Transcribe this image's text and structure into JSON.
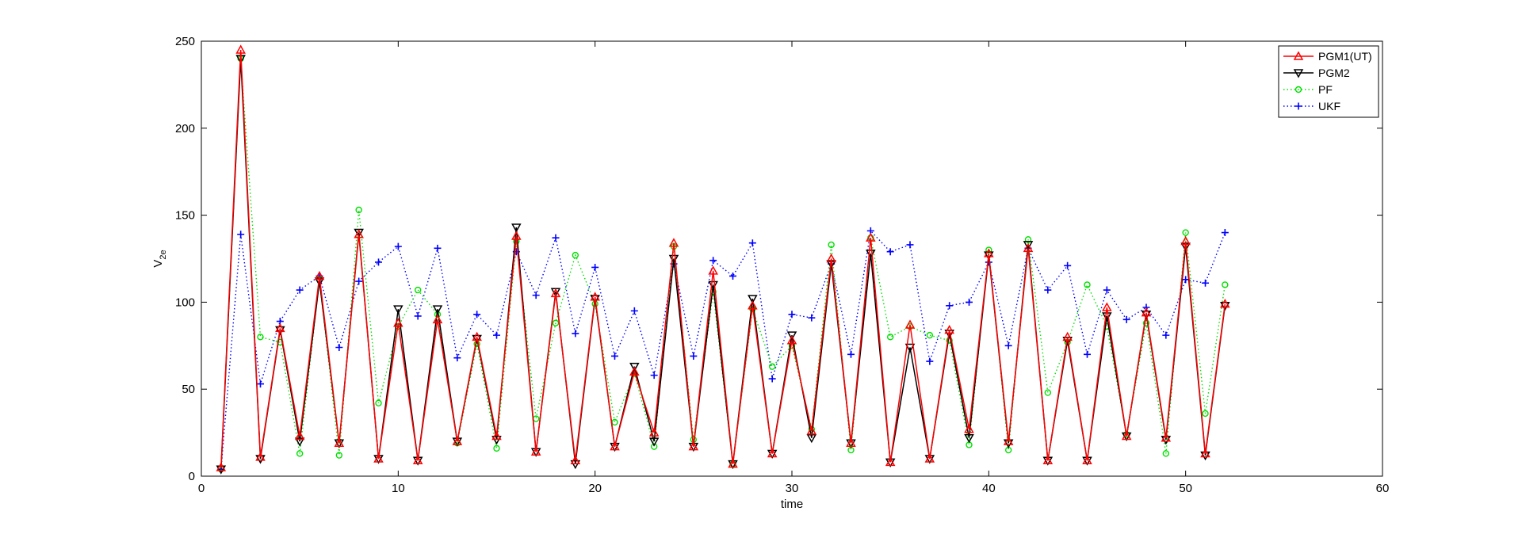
{
  "chart_data": {
    "type": "line",
    "xlabel": "time",
    "ylabel": "V",
    "ylabel_subscript": "2e",
    "xlim": [
      0,
      60
    ],
    "ylim": [
      0,
      250
    ],
    "xticks": [
      0,
      10,
      20,
      30,
      40,
      50,
      60
    ],
    "yticks": [
      0,
      50,
      100,
      150,
      200,
      250
    ],
    "grid": false,
    "legend_position": "top-right",
    "x": [
      1,
      2,
      3,
      4,
      5,
      6,
      7,
      8,
      9,
      10,
      11,
      12,
      13,
      14,
      15,
      16,
      17,
      18,
      19,
      20,
      21,
      22,
      23,
      24,
      25,
      26,
      27,
      28,
      29,
      30,
      31,
      32,
      33,
      34,
      35,
      36,
      37,
      38,
      39,
      40,
      41,
      42,
      43,
      44,
      45,
      46,
      47,
      48,
      49,
      50,
      51,
      52
    ],
    "series": [
      {
        "name": "PGM1(UT)",
        "color": "#ff0000",
        "line": "solid",
        "marker": "triangle-up",
        "values": [
          5,
          245,
          11,
          85,
          23,
          115,
          19,
          139,
          10,
          88,
          9,
          90,
          20,
          80,
          23,
          138,
          14,
          105,
          9,
          103,
          17,
          60,
          25,
          134,
          17,
          118,
          7,
          98,
          13,
          78,
          26,
          125,
          19,
          137,
          8,
          87,
          10,
          84,
          27,
          128,
          20,
          131,
          9,
          80,
          9,
          97,
          23,
          94,
          22,
          135,
          13,
          99
        ]
      },
      {
        "name": "PGM2",
        "color": "#000000",
        "line": "solid",
        "marker": "triangle-down",
        "values": [
          4,
          240,
          10,
          84,
          20,
          112,
          19,
          140,
          10,
          96,
          9,
          96,
          20,
          79,
          21,
          143,
          14,
          106,
          7,
          102,
          17,
          63,
          20,
          125,
          17,
          110,
          7,
          102,
          13,
          81,
          22,
          122,
          19,
          128,
          8,
          74,
          10,
          82,
          22,
          127,
          19,
          133,
          9,
          78,
          9,
          92,
          23,
          93,
          21,
          132,
          12,
          98
        ]
      },
      {
        "name": "PF",
        "color": "#00e000",
        "line": "dotted",
        "marker": "circle",
        "values": [
          4,
          240,
          80,
          77,
          13,
          113,
          12,
          153,
          42,
          86,
          107,
          93,
          19,
          76,
          16,
          135,
          33,
          88,
          127,
          99,
          31,
          59,
          17,
          132,
          21,
          106,
          7,
          96,
          63,
          75,
          27,
          133,
          15,
          137,
          80,
          86,
          81,
          78,
          18,
          130,
          15,
          136,
          48,
          77,
          110,
          86,
          24,
          88,
          13,
          140,
          36,
          110
        ]
      },
      {
        "name": "UKF",
        "color": "#0000ff",
        "line": "dotted",
        "marker": "plus",
        "values": [
          4,
          139,
          53,
          89,
          107,
          115,
          74,
          112,
          123,
          132,
          92,
          131,
          68,
          93,
          81,
          129,
          104,
          137,
          82,
          120,
          69,
          95,
          58,
          122,
          69,
          124,
          115,
          134,
          56,
          93,
          91,
          122,
          70,
          141,
          129,
          133,
          66,
          98,
          100,
          123,
          75,
          131,
          107,
          121,
          70,
          107,
          90,
          97,
          81,
          113,
          111,
          140
        ]
      }
    ]
  }
}
